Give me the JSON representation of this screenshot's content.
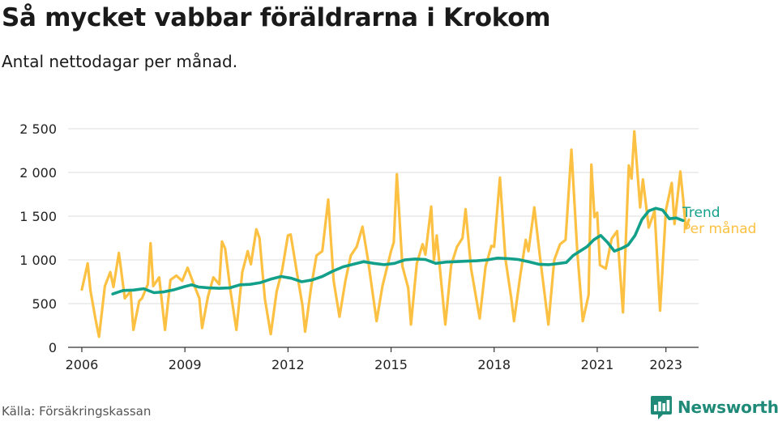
{
  "header": {
    "title": "Så mycket vabbar föräldrarna i Krokom",
    "subtitle": "Antal nettodagar per månad."
  },
  "footer": {
    "source": "Källa: Försäkringskassan",
    "brand": "Newsworthy",
    "brand_icon": "bar-chart-speech-bubble-icon"
  },
  "colors": {
    "per_month": "#fcc143",
    "trend": "#13a08a",
    "brand": "#1f8a78",
    "grid": "#dddddd"
  },
  "chart_data": {
    "type": "line",
    "title": "Så mycket vabbar föräldrarna i Krokom",
    "subtitle": "Antal nettodagar per månad.",
    "xlim": [
      2005.6,
      2023.95
    ],
    "ylim": [
      0,
      2500
    ],
    "x_ticks": [
      2006,
      2009,
      2012,
      2015,
      2018,
      2021,
      2023
    ],
    "x_tick_labels": [
      "2006",
      "2009",
      "2012",
      "2015",
      "2018",
      "2021",
      "2023"
    ],
    "y_ticks": [
      0,
      500,
      1000,
      1500,
      2000,
      2500
    ],
    "y_tick_labels": [
      "0",
      "500",
      "1 000",
      "1 500",
      "2 000",
      "2 500"
    ],
    "grid": true,
    "legend": "right, at line ends",
    "series": [
      {
        "name": "Trend",
        "color": "#13a08a",
        "points": [
          [
            2006.9,
            610
          ],
          [
            2007.2,
            650
          ],
          [
            2007.5,
            655
          ],
          [
            2007.8,
            670
          ],
          [
            2008.1,
            625
          ],
          [
            2008.4,
            635
          ],
          [
            2008.7,
            660
          ],
          [
            2009.0,
            695
          ],
          [
            2009.2,
            715
          ],
          [
            2009.4,
            690
          ],
          [
            2009.7,
            680
          ],
          [
            2010.0,
            675
          ],
          [
            2010.3,
            680
          ],
          [
            2010.6,
            715
          ],
          [
            2010.9,
            720
          ],
          [
            2011.2,
            740
          ],
          [
            2011.5,
            780
          ],
          [
            2011.8,
            810
          ],
          [
            2012.1,
            790
          ],
          [
            2012.4,
            750
          ],
          [
            2012.7,
            770
          ],
          [
            2013.0,
            810
          ],
          [
            2013.3,
            870
          ],
          [
            2013.6,
            920
          ],
          [
            2013.9,
            950
          ],
          [
            2014.2,
            980
          ],
          [
            2014.5,
            960
          ],
          [
            2014.8,
            945
          ],
          [
            2015.1,
            960
          ],
          [
            2015.4,
            1000
          ],
          [
            2015.7,
            1010
          ],
          [
            2016.0,
            1005
          ],
          [
            2016.3,
            960
          ],
          [
            2016.6,
            975
          ],
          [
            2016.9,
            980
          ],
          [
            2017.2,
            985
          ],
          [
            2017.5,
            990
          ],
          [
            2017.8,
            1000
          ],
          [
            2018.1,
            1020
          ],
          [
            2018.4,
            1015
          ],
          [
            2018.7,
            1005
          ],
          [
            2019.0,
            980
          ],
          [
            2019.3,
            950
          ],
          [
            2019.6,
            945
          ],
          [
            2019.9,
            960
          ],
          [
            2020.1,
            970
          ],
          [
            2020.3,
            1050
          ],
          [
            2020.5,
            1100
          ],
          [
            2020.7,
            1150
          ],
          [
            2020.9,
            1230
          ],
          [
            2021.1,
            1280
          ],
          [
            2021.3,
            1200
          ],
          [
            2021.5,
            1100
          ],
          [
            2021.7,
            1130
          ],
          [
            2021.9,
            1170
          ],
          [
            2022.1,
            1280
          ],
          [
            2022.3,
            1460
          ],
          [
            2022.5,
            1560
          ],
          [
            2022.7,
            1590
          ],
          [
            2022.9,
            1570
          ],
          [
            2023.1,
            1470
          ],
          [
            2023.3,
            1480
          ],
          [
            2023.5,
            1450
          ]
        ]
      },
      {
        "name": "Per månad",
        "color": "#fcc143",
        "points": [
          [
            2006.0,
            660
          ],
          [
            2006.17,
            960
          ],
          [
            2006.25,
            650
          ],
          [
            2006.4,
            320
          ],
          [
            2006.5,
            120
          ],
          [
            2006.67,
            700
          ],
          [
            2006.83,
            860
          ],
          [
            2006.92,
            690
          ],
          [
            2007.08,
            1080
          ],
          [
            2007.25,
            560
          ],
          [
            2007.42,
            640
          ],
          [
            2007.5,
            200
          ],
          [
            2007.67,
            530
          ],
          [
            2007.75,
            560
          ],
          [
            2007.92,
            720
          ],
          [
            2008.0,
            1190
          ],
          [
            2008.08,
            700
          ],
          [
            2008.25,
            800
          ],
          [
            2008.42,
            200
          ],
          [
            2008.58,
            770
          ],
          [
            2008.75,
            820
          ],
          [
            2008.92,
            760
          ],
          [
            2009.08,
            910
          ],
          [
            2009.25,
            730
          ],
          [
            2009.42,
            560
          ],
          [
            2009.5,
            220
          ],
          [
            2009.67,
            580
          ],
          [
            2009.83,
            800
          ],
          [
            2010.0,
            720
          ],
          [
            2010.08,
            1210
          ],
          [
            2010.17,
            1130
          ],
          [
            2010.33,
            640
          ],
          [
            2010.5,
            200
          ],
          [
            2010.67,
            860
          ],
          [
            2010.83,
            1100
          ],
          [
            2010.92,
            950
          ],
          [
            2011.08,
            1350
          ],
          [
            2011.17,
            1250
          ],
          [
            2011.33,
            550
          ],
          [
            2011.5,
            150
          ],
          [
            2011.67,
            640
          ],
          [
            2011.83,
            880
          ],
          [
            2012.0,
            1280
          ],
          [
            2012.08,
            1290
          ],
          [
            2012.25,
            880
          ],
          [
            2012.42,
            480
          ],
          [
            2012.5,
            180
          ],
          [
            2012.67,
            680
          ],
          [
            2012.83,
            1050
          ],
          [
            2013.0,
            1100
          ],
          [
            2013.17,
            1690
          ],
          [
            2013.33,
            760
          ],
          [
            2013.5,
            350
          ],
          [
            2013.67,
            760
          ],
          [
            2013.83,
            1050
          ],
          [
            2014.0,
            1150
          ],
          [
            2014.17,
            1380
          ],
          [
            2014.33,
            1000
          ],
          [
            2014.58,
            300
          ],
          [
            2014.75,
            700
          ],
          [
            2015.0,
            1100
          ],
          [
            2015.08,
            1200
          ],
          [
            2015.17,
            1980
          ],
          [
            2015.33,
            930
          ],
          [
            2015.5,
            680
          ],
          [
            2015.58,
            260
          ],
          [
            2015.75,
            960
          ],
          [
            2015.92,
            1180
          ],
          [
            2016.0,
            1060
          ],
          [
            2016.17,
            1610
          ],
          [
            2016.25,
            1000
          ],
          [
            2016.33,
            1280
          ],
          [
            2016.58,
            260
          ],
          [
            2016.75,
            940
          ],
          [
            2016.92,
            1150
          ],
          [
            2017.08,
            1250
          ],
          [
            2017.17,
            1580
          ],
          [
            2017.33,
            900
          ],
          [
            2017.58,
            330
          ],
          [
            2017.75,
            920
          ],
          [
            2017.92,
            1160
          ],
          [
            2018.0,
            1150
          ],
          [
            2018.17,
            1940
          ],
          [
            2018.33,
            1010
          ],
          [
            2018.5,
            560
          ],
          [
            2018.58,
            300
          ],
          [
            2018.75,
            790
          ],
          [
            2018.92,
            1230
          ],
          [
            2019.0,
            1100
          ],
          [
            2019.17,
            1600
          ],
          [
            2019.33,
            1050
          ],
          [
            2019.58,
            260
          ],
          [
            2019.75,
            1000
          ],
          [
            2019.92,
            1180
          ],
          [
            2020.08,
            1230
          ],
          [
            2020.25,
            2260
          ],
          [
            2020.42,
            1100
          ],
          [
            2020.58,
            300
          ],
          [
            2020.75,
            600
          ],
          [
            2020.83,
            2090
          ],
          [
            2020.92,
            1490
          ],
          [
            2021.0,
            1540
          ],
          [
            2021.08,
            940
          ],
          [
            2021.25,
            900
          ],
          [
            2021.42,
            1240
          ],
          [
            2021.58,
            1330
          ],
          [
            2021.75,
            400
          ],
          [
            2021.92,
            2080
          ],
          [
            2022.0,
            1930
          ],
          [
            2022.08,
            2470
          ],
          [
            2022.25,
            1600
          ],
          [
            2022.33,
            1920
          ],
          [
            2022.5,
            1370
          ],
          [
            2022.67,
            1560
          ],
          [
            2022.83,
            420
          ],
          [
            2023.0,
            1570
          ],
          [
            2023.17,
            1880
          ],
          [
            2023.25,
            1410
          ],
          [
            2023.42,
            2010
          ],
          [
            2023.5,
            1700
          ],
          [
            2023.58,
            1360
          ],
          [
            2023.67,
            1460
          ]
        ]
      }
    ]
  }
}
